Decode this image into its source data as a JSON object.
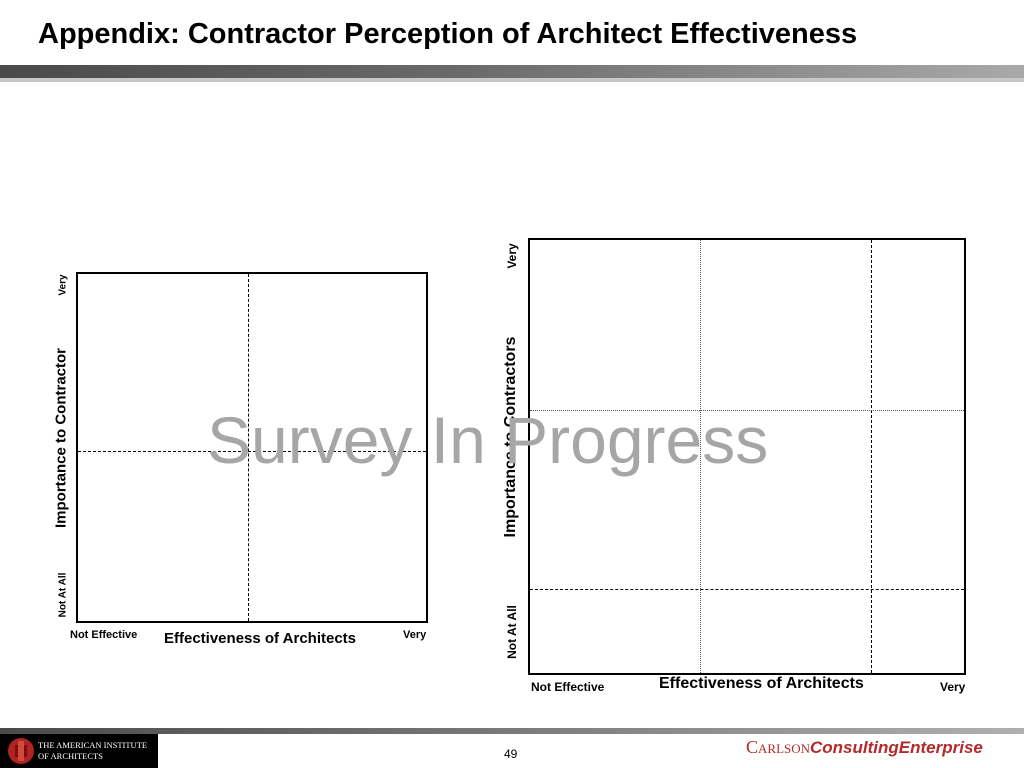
{
  "page": {
    "title": "Appendix: Contractor Perception of Architect Effectiveness"
  },
  "watermark": "Survey In Progress",
  "chart_data": [
    {
      "type": "scatter",
      "xlabel": "Effectiveness of Architects",
      "ylabel": "Importance to Contractor",
      "x_min_label": "Not Effective",
      "x_max_label": "Very",
      "y_min_label": "Not At All",
      "y_max_label": "Very",
      "series": []
    },
    {
      "type": "scatter",
      "xlabel": "Effectiveness of Architects",
      "ylabel": "Importance to Contractors",
      "x_min_label": "Not Effective",
      "x_max_label": "Very",
      "y_min_label": "Not At All",
      "y_max_label": "Very",
      "series": []
    }
  ],
  "footer": {
    "logo_line1": "THE AMERICAN INSTITUTE",
    "logo_line2": "OF ARCHITECTS",
    "page_number": "49",
    "brand_part1": "Carlson",
    "brand_part2": "ConsultingEnterprise"
  }
}
